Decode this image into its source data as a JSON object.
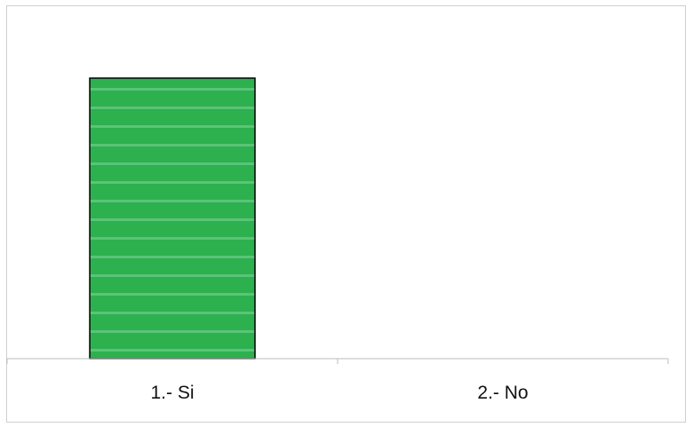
{
  "chart_data": {
    "type": "bar",
    "categories": [
      "1.- Si",
      "2.- No"
    ],
    "values": [
      100,
      0
    ],
    "ylim": [
      0,
      100
    ],
    "grid": false,
    "bar_color": "#2db04e",
    "stripe_color": "#7fd49a",
    "bar_edge_color": "#000000",
    "axis_color": "#bdbdbd"
  }
}
